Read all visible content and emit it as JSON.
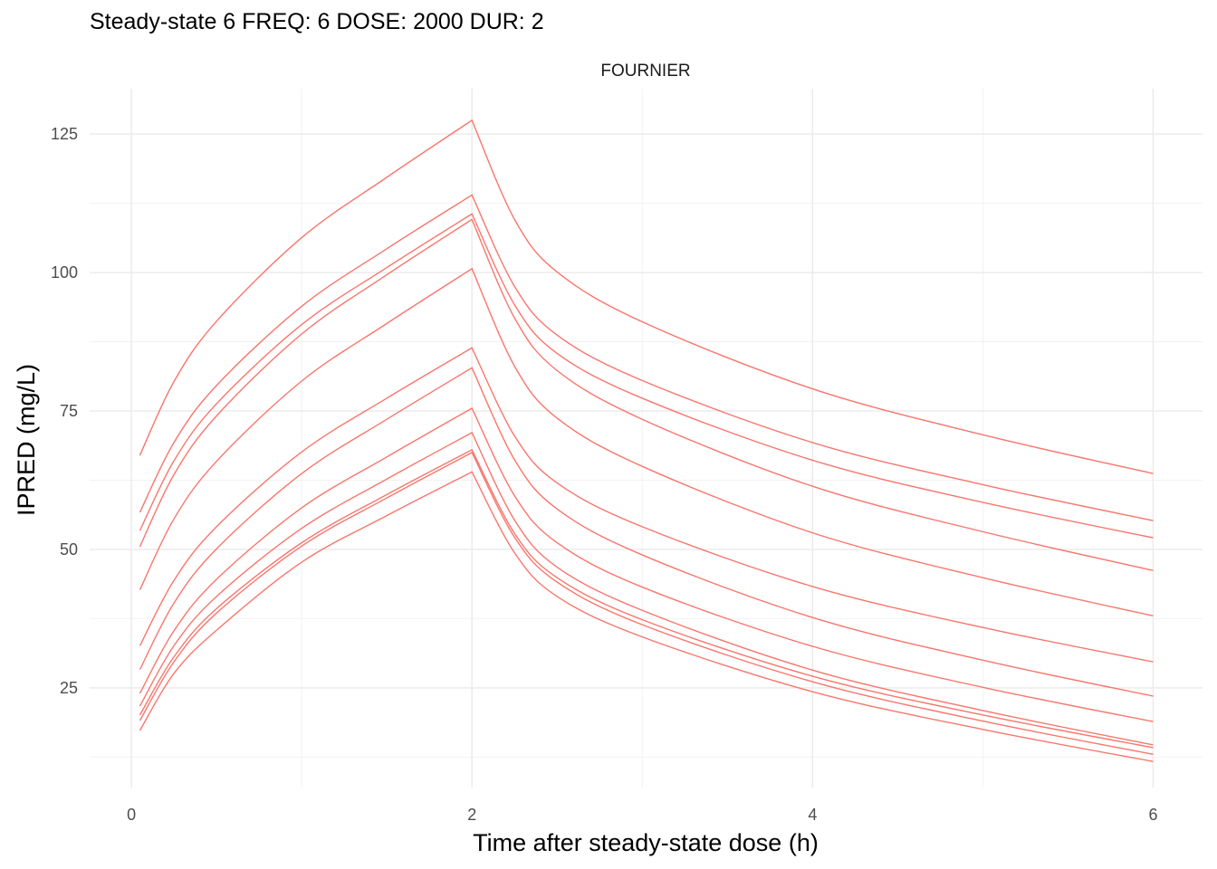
{
  "chart_data": {
    "type": "line",
    "title": "Steady-state 6 FREQ: 6 DOSE: 2000 DUR: 2",
    "facet_label": "FOURNIER",
    "xlabel": "Time after steady-state dose (h)",
    "ylabel": "IPRED (mg/L)",
    "xlim": [
      -0.245,
      6.29
    ],
    "ylim": [
      7.0,
      133.2
    ],
    "xticks": [
      0,
      2,
      4,
      6
    ],
    "yticks": [
      25,
      50,
      75,
      100,
      125
    ],
    "grid": true,
    "line_color": "#F8766D",
    "x": [
      0.05,
      0.25,
      0.5,
      1,
      1.5,
      2,
      2.25,
      2.5,
      3,
      4,
      5,
      6
    ],
    "series": [
      {
        "values": [
          67,
          80.3,
          91.2,
          106.3,
          117.2,
          127.5,
          109.6,
          100.1,
          91.1,
          79.0,
          70.7,
          63.7
        ]
      },
      {
        "values": [
          56.7,
          69.3,
          79.6,
          93.9,
          104.3,
          114,
          97.5,
          88.7,
          80.5,
          69.3,
          61.7,
          55.2
        ]
      },
      {
        "values": [
          53.4,
          66.0,
          76.3,
          90.6,
          100.9,
          110.6,
          94.2,
          85.4,
          77.3,
          66.1,
          58.5,
          52.1
        ]
      },
      {
        "values": [
          50.5,
          63.5,
          74.1,
          88.9,
          99.6,
          109.6,
          91.8,
          82.3,
          73.5,
          61.4,
          53.2,
          46.2
        ]
      },
      {
        "values": [
          42.7,
          55.5,
          65.9,
          80.4,
          90.8,
          100.7,
          83.1,
          73.7,
          65.0,
          53.0,
          44.9,
          38.0
        ]
      },
      {
        "values": [
          32.6,
          44.4,
          54.1,
          67.6,
          77.3,
          86.4,
          70.5,
          62.0,
          54.1,
          43.3,
          35.9,
          29.7
        ]
      },
      {
        "values": [
          28.3,
          40.3,
          50.1,
          63.7,
          73.5,
          82.8,
          66.2,
          57.3,
          49.0,
          37.7,
          30.0,
          23.5
        ]
      },
      {
        "values": [
          24.0,
          35.3,
          44.6,
          57.5,
          66.7,
          75.5,
          59.7,
          51.2,
          43.2,
          32.5,
          25.1,
          18.9
        ]
      },
      {
        "values": [
          21.7,
          32.6,
          41.5,
          53.8,
          62.7,
          71.1,
          55.3,
          46.8,
          39.0,
          28.2,
          20.9,
          14.7
        ]
      },
      {
        "values": [
          20.1,
          30.6,
          39.3,
          51.2,
          59.9,
          68.0,
          52.9,
          44.9,
          37.3,
          27.1,
          20.1,
          14.2
        ]
      },
      {
        "values": [
          19.1,
          29.7,
          38.5,
          50.6,
          59.3,
          67.5,
          52.2,
          44.1,
          36.4,
          26.1,
          19.0,
          13.0
        ]
      },
      {
        "values": [
          17.3,
          27.6,
          35.4,
          47.7,
          56.1,
          64.0,
          49.4,
          41.5,
          34.2,
          24.3,
          17.5,
          11.7
        ]
      }
    ]
  }
}
